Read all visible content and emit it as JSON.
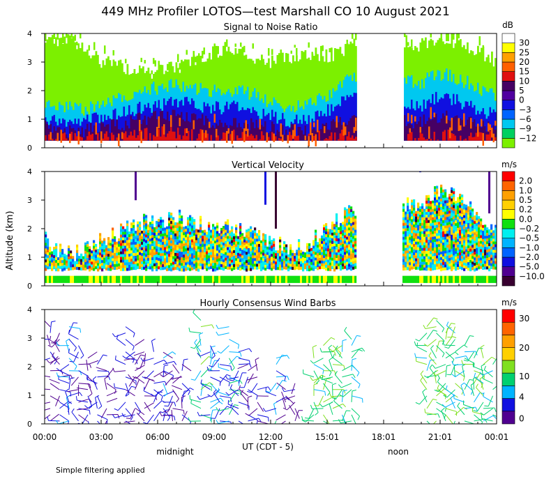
{
  "title": "449 MHz Profiler LOTOS—test Marshall CO 10 August 2021",
  "ylabel": "Altitude (km)",
  "footnote": "Simple filtering applied",
  "xaxis": {
    "label": "UT  (CDT - 5)",
    "ticks": [
      "00:00",
      "03:00",
      "06:00",
      "09:00",
      "12:00",
      "15:01",
      "18:01",
      "21:01",
      "00:01"
    ],
    "midnight_label": "midnight",
    "noon_label": "noon"
  },
  "colors": {
    "snr": [
      "#7cf000",
      "#00d060",
      "#00c8f0",
      "#0064ff",
      "#1010e0",
      "#5000a0",
      "#460064",
      "#e01010",
      "#ff6000",
      "#ffa000",
      "#ffff00",
      "#ffffff"
    ],
    "velocity": [
      "#380030",
      "#500090",
      "#1010e0",
      "#0064ff",
      "#00b4ff",
      "#00f0f0",
      "#10e010",
      "#ffff00",
      "#ffd000",
      "#ffa000",
      "#ff6400",
      "#ff0000"
    ],
    "wind": [
      "#500090",
      "#1010e0",
      "#00b4ff",
      "#00d070",
      "#80e020",
      "#ffd000",
      "#ffa000",
      "#ff6400",
      "#ff0000"
    ]
  },
  "chart_data": [
    {
      "type": "heatmap",
      "title": "Signal to Noise Ratio",
      "unit": "dB",
      "ylim": [
        0,
        4
      ],
      "yticks": [
        "0",
        "1",
        "2",
        "3",
        "4"
      ],
      "colorbar_labels": [
        "30",
        "25",
        "20",
        "15",
        "10",
        "5",
        "0",
        "−3",
        "−6",
        "−9",
        "−12"
      ],
      "x_range_hours": [
        0,
        24
      ],
      "data_hours": [
        [
          0,
          16.5
        ],
        [
          19.0,
          23.9
        ]
      ],
      "layers": [
        {
          "name": "green",
          "color_index": 0,
          "top_km": [
            3.6,
            3.9,
            3.5,
            3.0,
            2.9,
            2.6,
            2.7,
            2.8,
            3.1,
            3.4,
            3.3,
            3.1,
            3.0,
            3.2,
            3.3,
            3.2,
            3.5,
            3.8,
            null,
            null,
            3.6,
            3.8,
            3.7,
            3.4,
            3.0
          ]
        },
        {
          "name": "cyan",
          "color_index": 2,
          "top_km": [
            1.5,
            1.4,
            1.3,
            1.6,
            1.8,
            2.0,
            2.1,
            2.2,
            2.1,
            2.0,
            2.0,
            1.9,
            1.6,
            1.4,
            1.5,
            1.8,
            2.4,
            2.6,
            null,
            null,
            2.3,
            2.6,
            2.4,
            2.1,
            1.8
          ]
        },
        {
          "name": "blue",
          "color_index": 4,
          "top_km": [
            1.0,
            0.95,
            0.9,
            1.1,
            1.2,
            1.4,
            1.5,
            1.6,
            1.5,
            1.4,
            1.4,
            1.3,
            1.1,
            0.95,
            1.0,
            1.3,
            1.7,
            1.9,
            null,
            null,
            1.5,
            1.8,
            1.6,
            1.3,
            1.1
          ]
        },
        {
          "name": "purple",
          "color_index": 6,
          "top_km": [
            0.7,
            0.6,
            0.6,
            0.7,
            0.8,
            1.0,
            1.1,
            1.1,
            1.0,
            0.9,
            0.9,
            0.85,
            0.7,
            0.6,
            0.65,
            0.8,
            1.0,
            1.1,
            null,
            null,
            0.9,
            1.1,
            1.0,
            0.8,
            0.7
          ]
        },
        {
          "name": "red",
          "color_index": 7,
          "top_km": [
            0.35,
            0.35,
            0.35,
            0.35,
            0.4,
            0.45,
            0.5,
            0.5,
            0.45,
            0.4,
            0.4,
            0.4,
            0.35,
            0.35,
            0.35,
            0.35,
            0.4,
            0.4,
            null,
            null,
            0.4,
            0.4,
            0.4,
            0.35,
            0.35
          ]
        }
      ]
    },
    {
      "type": "heatmap",
      "title": "Vertical Velocity",
      "unit": "m/s",
      "ylim": [
        0,
        4
      ],
      "yticks": [
        "0",
        "1",
        "2",
        "3",
        "4"
      ],
      "colorbar_labels": [
        "2.0",
        "1.0",
        "0.5",
        "0.2",
        "0.0",
        "−0.2",
        "−0.5",
        "−1.0",
        "−2.0",
        "−5.0",
        "−10.0"
      ],
      "x_range_hours": [
        0,
        24
      ],
      "data_hours": [
        [
          0,
          16.5
        ],
        [
          19.0,
          23.9
        ]
      ],
      "column_top_km": [
        1.6,
        1.1,
        1.2,
        1.6,
        1.9,
        2.2,
        2.3,
        2.4,
        2.2,
        2.1,
        2.0,
        1.9,
        1.6,
        1.3,
        1.5,
        2.0,
        2.6,
        2.9,
        null,
        null,
        2.8,
        3.4,
        3.0,
        2.4,
        1.9
      ],
      "surface_band_km": [
        0.1,
        0.35
      ]
    },
    {
      "type": "scatter",
      "title": "Hourly Consensus Wind Barbs",
      "unit": "m/s",
      "ylim": [
        0,
        4
      ],
      "yticks": [
        "0",
        "1",
        "2",
        "3",
        "4"
      ],
      "colorbar_labels": [
        "30",
        "20",
        "10",
        "4",
        "0"
      ],
      "color_thresholds": [
        0,
        4,
        8,
        10,
        12,
        20,
        25,
        30
      ],
      "x_range_hours": [
        0,
        24
      ],
      "hours": [
        0,
        0.5,
        1,
        1.5,
        2,
        2.5,
        3,
        4,
        4.5,
        5,
        5.5,
        6,
        6.5,
        7,
        8,
        8.5,
        9,
        9.5,
        10,
        10.5,
        11,
        12,
        12.5,
        13,
        14,
        14.5,
        15,
        15.5,
        16,
        20,
        20.5,
        21,
        21.5,
        22,
        22.5,
        23,
        23.5
      ],
      "top_km": [
        3.6,
        3.2,
        3.5,
        3.0,
        2.5,
        2.2,
        2.0,
        3.6,
        2.8,
        2.6,
        2.6,
        2.4,
        2.4,
        2.2,
        3.8,
        2.8,
        2.4,
        3.6,
        2.6,
        2.2,
        2.0,
        2.5,
        1.4,
        1.5,
        2.4,
        2.8,
        2.9,
        2.9,
        3.0,
        3.6,
        3.7,
        3.2,
        3.5,
        2.8,
        2.6,
        2.4,
        2.2
      ],
      "speed_m_s": [
        3,
        4,
        8,
        4,
        3,
        6,
        2,
        5,
        3,
        2,
        5,
        7,
        3,
        4,
        11,
        8,
        6,
        10,
        6,
        4,
        3,
        9,
        2,
        3,
        11,
        12,
        11,
        11,
        10,
        11,
        12,
        12,
        11,
        10,
        11,
        11,
        10
      ]
    }
  ]
}
